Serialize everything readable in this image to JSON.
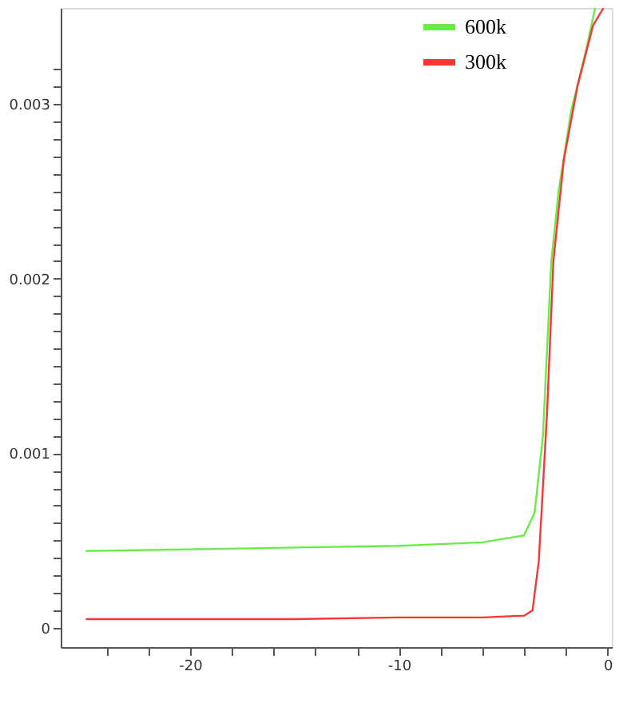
{
  "chart_data": {
    "type": "line",
    "legend": "top right",
    "grid": false,
    "marker": "none",
    "line_style": "solid",
    "xlim": [
      -26.2,
      0.2
    ],
    "ylim": [
      -0.00011,
      0.00355
    ],
    "xticks": [
      {
        "value": -24,
        "label": null
      },
      {
        "value": -22,
        "label": null
      },
      -20,
      {
        "value": -18,
        "label": null
      },
      {
        "value": -16,
        "label": null
      },
      {
        "value": -14,
        "label": null
      },
      {
        "value": -12,
        "label": null
      },
      -10,
      {
        "value": -8,
        "label": null
      },
      {
        "value": -6,
        "label": null
      },
      {
        "value": -4,
        "label": null
      },
      {
        "value": -2,
        "label": null
      },
      0
    ],
    "yticks": [
      0,
      {
        "value": 0.0001,
        "label": null
      },
      {
        "value": 0.0002,
        "label": null
      },
      {
        "value": 0.0003,
        "label": null
      },
      {
        "value": 0.0004,
        "label": null
      },
      {
        "value": 0.0005,
        "label": null
      },
      {
        "value": 0.0006,
        "label": null
      },
      {
        "value": 0.0007,
        "label": null
      },
      {
        "value": 0.0008,
        "label": null
      },
      {
        "value": 0.0009,
        "label": null
      },
      0.001,
      {
        "value": 0.0011,
        "label": null
      },
      {
        "value": 0.0012,
        "label": null
      },
      {
        "value": 0.0013,
        "label": null
      },
      {
        "value": 0.0014,
        "label": null
      },
      {
        "value": 0.0015,
        "label": null
      },
      {
        "value": 0.0016,
        "label": null
      },
      {
        "value": 0.0017,
        "label": null
      },
      {
        "value": 0.0018,
        "label": null
      },
      {
        "value": 0.0019,
        "label": null
      },
      0.002,
      {
        "value": 0.0021,
        "label": null
      },
      {
        "value": 0.0022,
        "label": null
      },
      {
        "value": 0.0023,
        "label": null
      },
      {
        "value": 0.0024,
        "label": null
      },
      {
        "value": 0.0025,
        "label": null
      },
      {
        "value": 0.0026,
        "label": null
      },
      {
        "value": 0.0027,
        "label": null
      },
      {
        "value": 0.0028,
        "label": null
      },
      {
        "value": 0.0029,
        "label": null
      },
      0.003,
      {
        "value": 0.0031,
        "label": null
      },
      {
        "value": 0.0032,
        "label": null
      }
    ],
    "series": [
      {
        "name": "600k",
        "color": "#66ee44",
        "x": [
          -25,
          -20,
          -15,
          -10,
          -6,
          -4,
          -3.5,
          -3.1,
          -2.7,
          -2.35,
          -1.75,
          -1.05,
          -0.6
        ],
        "values": [
          0.00044,
          0.00045,
          0.00046,
          0.00047,
          0.00049,
          0.00053,
          0.00066,
          0.0011,
          0.0021,
          0.0025,
          0.00296,
          0.0033,
          0.00355
        ]
      },
      {
        "name": "300k",
        "color": "#ff3333",
        "x": [
          -25,
          -20,
          -15,
          -10,
          -6,
          -4,
          -3.6,
          -3.3,
          -2.9,
          -2.6,
          -2.1,
          -1.45,
          -0.7,
          -0.2
        ],
        "values": [
          5e-05,
          5e-05,
          5e-05,
          6e-05,
          6e-05,
          7e-05,
          0.0001,
          0.00038,
          0.00124,
          0.0021,
          0.00268,
          0.0031,
          0.00345,
          0.00355
        ]
      }
    ]
  }
}
